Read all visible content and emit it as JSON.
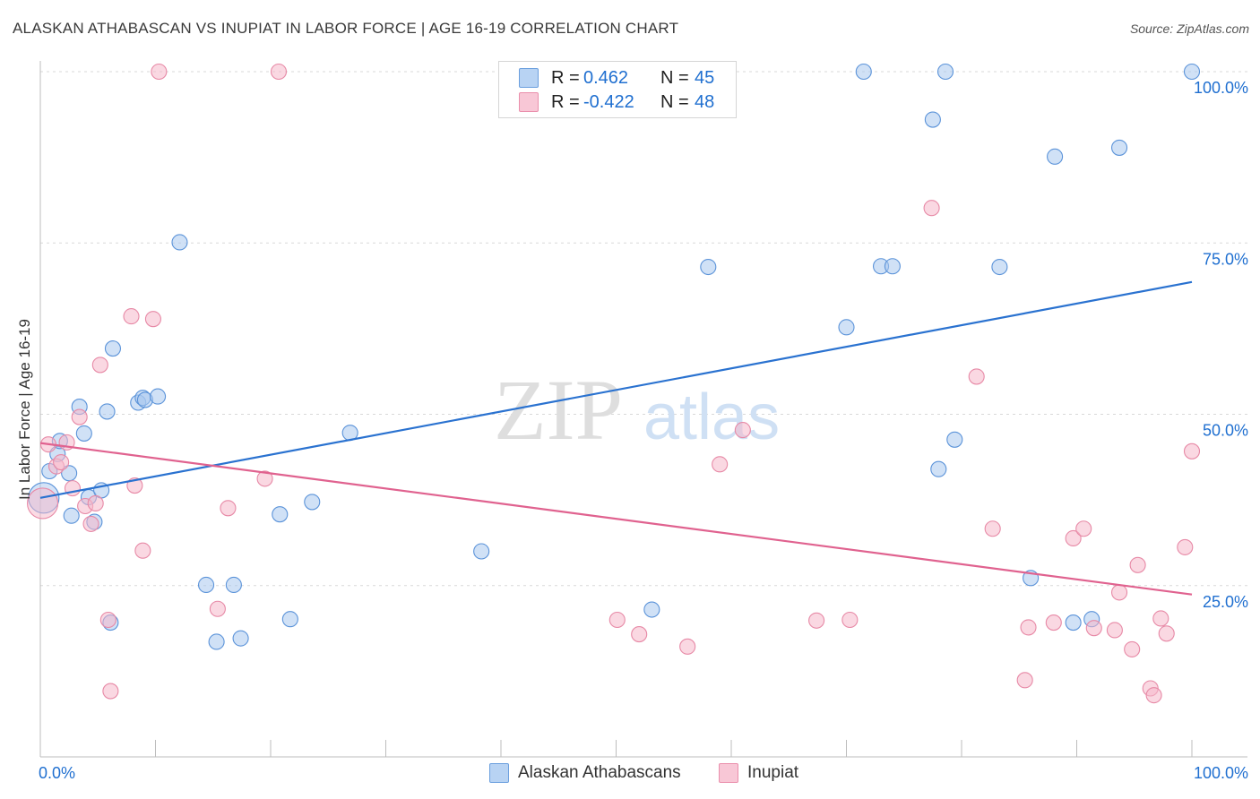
{
  "title": "ALASKAN ATHABASCAN VS INUPIAT IN LABOR FORCE | AGE 16-19 CORRELATION CHART",
  "source": "Source: ZipAtlas.com",
  "watermark": {
    "zip": "ZIP",
    "atlas": "atlas"
  },
  "legend": {
    "series1": {
      "r_label": "R =",
      "r_value": "0.462",
      "n_label": "N =",
      "n_value": "45"
    },
    "series2": {
      "r_label": "R =",
      "r_value": "-0.422",
      "n_label": "N =",
      "n_value": "48"
    }
  },
  "bottom_legend": {
    "series1": "Alaskan Athabascans",
    "series2": "Inupiat"
  },
  "colors": {
    "series1_fill": "#a9c8ef",
    "series1_stroke": "#5b93d9",
    "series1_line": "#2a72d0",
    "series2_fill": "#f5b8ca",
    "series2_stroke": "#e789a6",
    "series2_line": "#e0628f",
    "grid": "#d8d8d8",
    "tick_label": "#1f6fd0"
  },
  "chart_data": {
    "type": "scatter",
    "title": "ALASKAN ATHABASCAN VS INUPIAT IN LABOR FORCE | AGE 16-19 CORRELATION CHART",
    "xlabel": "",
    "ylabel": "In Labor Force | Age 16-19",
    "xlim": [
      0,
      100
    ],
    "ylim": [
      0,
      100
    ],
    "x_tick_labels": [
      "0.0%",
      "100.0%"
    ],
    "y_ticks": [
      25,
      50,
      75,
      100
    ],
    "y_tick_labels": [
      "25.0%",
      "50.0%",
      "75.0%",
      "100.0%"
    ],
    "series": [
      {
        "name": "Alaskan Athabascans",
        "r": 0.462,
        "n": 45,
        "trend": [
          [
            0,
            37.8
          ],
          [
            100,
            69.3
          ]
        ],
        "points": [
          [
            0.3,
            37.8
          ],
          [
            0.8,
            41.7
          ],
          [
            1.5,
            44.2
          ],
          [
            1.7,
            46.1
          ],
          [
            2.5,
            41.4
          ],
          [
            2.7,
            35.2
          ],
          [
            3.4,
            51.1
          ],
          [
            3.8,
            47.2
          ],
          [
            4.2,
            37.9
          ],
          [
            4.7,
            34.3
          ],
          [
            5.3,
            38.9
          ],
          [
            5.8,
            50.4
          ],
          [
            6.3,
            59.6
          ],
          [
            8.5,
            51.7
          ],
          [
            8.9,
            52.4
          ],
          [
            9.1,
            52.1
          ],
          [
            10.2,
            52.6
          ],
          [
            12.1,
            75.1
          ],
          [
            14.4,
            25.1
          ],
          [
            15.3,
            16.8
          ],
          [
            16.8,
            25.1
          ],
          [
            17.4,
            17.3
          ],
          [
            20.8,
            35.4
          ],
          [
            21.7,
            20.1
          ],
          [
            23.6,
            37.2
          ],
          [
            26.9,
            47.3
          ],
          [
            38.3,
            30.0
          ],
          [
            53.1,
            21.5
          ],
          [
            58.0,
            71.5
          ],
          [
            70.0,
            62.7
          ],
          [
            71.5,
            100.0
          ],
          [
            73.0,
            71.6
          ],
          [
            74.0,
            71.6
          ],
          [
            77.5,
            93.0
          ],
          [
            78.0,
            42.0
          ],
          [
            78.6,
            100.0
          ],
          [
            79.4,
            46.3
          ],
          [
            83.3,
            71.5
          ],
          [
            86.0,
            26.1
          ],
          [
            88.1,
            87.6
          ],
          [
            89.7,
            19.6
          ],
          [
            91.3,
            20.1
          ],
          [
            93.7,
            88.9
          ],
          [
            100.0,
            100.0
          ],
          [
            6.1,
            19.6
          ]
        ]
      },
      {
        "name": "Inupiat",
        "r": -0.422,
        "n": 48,
        "trend": [
          [
            0,
            45.8
          ],
          [
            100,
            23.7
          ]
        ],
        "points": [
          [
            0.2,
            37.0
          ],
          [
            0.7,
            45.6
          ],
          [
            1.4,
            42.4
          ],
          [
            1.8,
            43.0
          ],
          [
            2.3,
            45.9
          ],
          [
            2.8,
            39.2
          ],
          [
            3.4,
            49.6
          ],
          [
            3.9,
            36.6
          ],
          [
            4.4,
            34.0
          ],
          [
            4.8,
            37.0
          ],
          [
            5.2,
            57.2
          ],
          [
            5.9,
            20.0
          ],
          [
            6.1,
            9.6
          ],
          [
            7.9,
            64.3
          ],
          [
            8.2,
            39.6
          ],
          [
            8.9,
            30.1
          ],
          [
            9.8,
            63.9
          ],
          [
            10.3,
            100.0
          ],
          [
            15.4,
            21.6
          ],
          [
            16.3,
            36.3
          ],
          [
            19.5,
            40.6
          ],
          [
            20.7,
            100.0
          ],
          [
            50.1,
            20.0
          ],
          [
            52.0,
            17.9
          ],
          [
            56.2,
            16.1
          ],
          [
            59.0,
            42.7
          ],
          [
            61.0,
            47.7
          ],
          [
            67.4,
            19.9
          ],
          [
            70.3,
            20.0
          ],
          [
            77.4,
            80.1
          ],
          [
            81.3,
            55.5
          ],
          [
            82.7,
            33.3
          ],
          [
            85.5,
            11.2
          ],
          [
            85.8,
            18.9
          ],
          [
            88.0,
            19.6
          ],
          [
            89.7,
            31.9
          ],
          [
            90.6,
            33.3
          ],
          [
            91.5,
            18.8
          ],
          [
            93.3,
            18.5
          ],
          [
            93.7,
            24.0
          ],
          [
            94.8,
            15.7
          ],
          [
            95.3,
            28.0
          ],
          [
            96.4,
            10.0
          ],
          [
            96.7,
            9.0
          ],
          [
            97.3,
            20.2
          ],
          [
            97.8,
            18.0
          ],
          [
            99.4,
            30.6
          ],
          [
            100.0,
            44.6
          ]
        ]
      }
    ]
  }
}
